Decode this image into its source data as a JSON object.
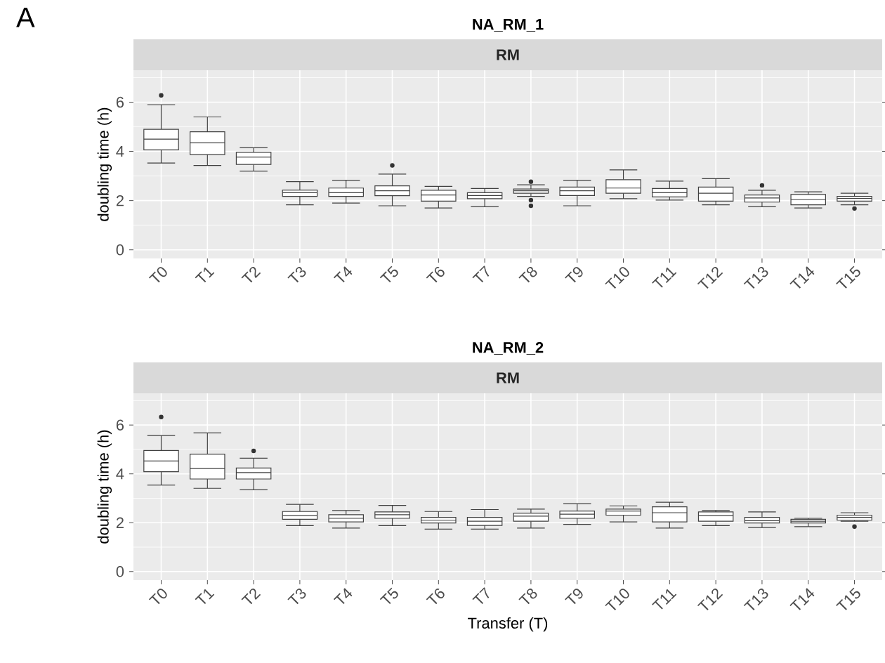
{
  "chart_data": [
    {
      "type": "box",
      "title": "NA_RM_1",
      "subtitle": "RM",
      "ylabel": "doubling time (h)",
      "annotations": [
        "A"
      ],
      "categories": [
        "T0",
        "T1",
        "T2",
        "T3",
        "T4",
        "T5",
        "T6",
        "T7",
        "T8",
        "T9",
        "T10",
        "T11",
        "T12",
        "T13",
        "T14",
        "T15"
      ],
      "boxes": [
        {
          "low": 3.53,
          "q1": 4.06,
          "median": 4.5,
          "q3": 4.9,
          "high": 5.9,
          "outliers": [
            6.28
          ]
        },
        {
          "low": 3.43,
          "q1": 3.87,
          "median": 4.35,
          "q3": 4.8,
          "high": 5.4
        },
        {
          "low": 3.2,
          "q1": 3.47,
          "median": 3.77,
          "q3": 3.96,
          "high": 4.15
        },
        {
          "low": 1.83,
          "q1": 2.17,
          "median": 2.32,
          "q3": 2.43,
          "high": 2.77
        },
        {
          "low": 1.9,
          "q1": 2.17,
          "median": 2.32,
          "q3": 2.51,
          "high": 2.83
        },
        {
          "low": 1.79,
          "q1": 2.2,
          "median": 2.4,
          "q3": 2.6,
          "high": 3.08,
          "outliers": [
            3.43
          ]
        },
        {
          "low": 1.7,
          "q1": 1.98,
          "median": 2.23,
          "q3": 2.42,
          "high": 2.58
        },
        {
          "low": 1.75,
          "q1": 2.08,
          "median": 2.21,
          "q3": 2.32,
          "high": 2.49
        },
        {
          "low": 2.17,
          "q1": 2.3,
          "median": 2.4,
          "q3": 2.47,
          "high": 2.64,
          "outliers": [
            2.77,
            2.02,
            1.79
          ]
        },
        {
          "low": 1.79,
          "q1": 2.21,
          "median": 2.4,
          "q3": 2.55,
          "high": 2.83
        },
        {
          "low": 2.08,
          "q1": 2.3,
          "median": 2.51,
          "q3": 2.85,
          "high": 3.25
        },
        {
          "low": 2.02,
          "q1": 2.15,
          "median": 2.32,
          "q3": 2.49,
          "high": 2.79
        },
        {
          "low": 1.83,
          "q1": 1.98,
          "median": 2.3,
          "q3": 2.55,
          "high": 2.89
        },
        {
          "low": 1.75,
          "q1": 1.94,
          "median": 2.11,
          "q3": 2.23,
          "high": 2.42,
          "outliers": [
            2.62
          ]
        },
        {
          "low": 1.7,
          "q1": 1.83,
          "median": 2.04,
          "q3": 2.25,
          "high": 2.36
        },
        {
          "low": 1.83,
          "q1": 1.98,
          "median": 2.09,
          "q3": 2.17,
          "high": 2.3,
          "outliers": [
            1.68
          ]
        }
      ],
      "ylim": [
        -0.35,
        7.3
      ],
      "yticks": [
        0,
        2,
        4,
        6
      ],
      "grid": true
    },
    {
      "type": "box",
      "title": "NA_RM_2",
      "subtitle": "RM",
      "ylabel": "doubling time (h)",
      "xlabel": "Transfer (T)",
      "categories": [
        "T0",
        "T1",
        "T2",
        "T3",
        "T4",
        "T5",
        "T6",
        "T7",
        "T8",
        "T9",
        "T10",
        "T11",
        "T12",
        "T13",
        "T14",
        "T15"
      ],
      "boxes": [
        {
          "low": 3.54,
          "q1": 4.09,
          "median": 4.53,
          "q3": 4.96,
          "high": 5.57,
          "outliers": [
            6.33
          ]
        },
        {
          "low": 3.41,
          "q1": 3.79,
          "median": 4.22,
          "q3": 4.81,
          "high": 5.68
        },
        {
          "low": 3.35,
          "q1": 3.79,
          "median": 4.05,
          "q3": 4.24,
          "high": 4.64,
          "outliers": [
            4.94
          ]
        },
        {
          "low": 1.88,
          "q1": 2.14,
          "median": 2.29,
          "q3": 2.46,
          "high": 2.75
        },
        {
          "low": 1.78,
          "q1": 2.03,
          "median": 2.18,
          "q3": 2.33,
          "high": 2.5
        },
        {
          "low": 1.88,
          "q1": 2.18,
          "median": 2.33,
          "q3": 2.44,
          "high": 2.71
        },
        {
          "low": 1.74,
          "q1": 1.99,
          "median": 2.1,
          "q3": 2.22,
          "high": 2.46
        },
        {
          "low": 1.74,
          "q1": 1.89,
          "median": 2.06,
          "q3": 2.22,
          "high": 2.54
        },
        {
          "low": 1.78,
          "q1": 2.06,
          "median": 2.27,
          "q3": 2.39,
          "high": 2.56
        },
        {
          "low": 1.93,
          "q1": 2.18,
          "median": 2.35,
          "q3": 2.48,
          "high": 2.78
        },
        {
          "low": 2.03,
          "q1": 2.31,
          "median": 2.48,
          "q3": 2.56,
          "high": 2.69
        },
        {
          "low": 1.78,
          "q1": 2.03,
          "median": 2.41,
          "q3": 2.65,
          "high": 2.84
        },
        {
          "low": 1.88,
          "q1": 2.06,
          "median": 2.29,
          "q3": 2.44,
          "high": 2.5
        },
        {
          "low": 1.8,
          "q1": 1.99,
          "median": 2.08,
          "q3": 2.22,
          "high": 2.44
        },
        {
          "low": 1.84,
          "q1": 1.99,
          "median": 2.06,
          "q3": 2.14,
          "high": 2.18
        },
        {
          "low": 2.06,
          "q1": 2.1,
          "median": 2.22,
          "q3": 2.31,
          "high": 2.41,
          "outliers": [
            1.84
          ]
        }
      ],
      "ylim": [
        -0.35,
        7.3
      ],
      "yticks": [
        0,
        2,
        4,
        6
      ],
      "grid": true
    }
  ]
}
